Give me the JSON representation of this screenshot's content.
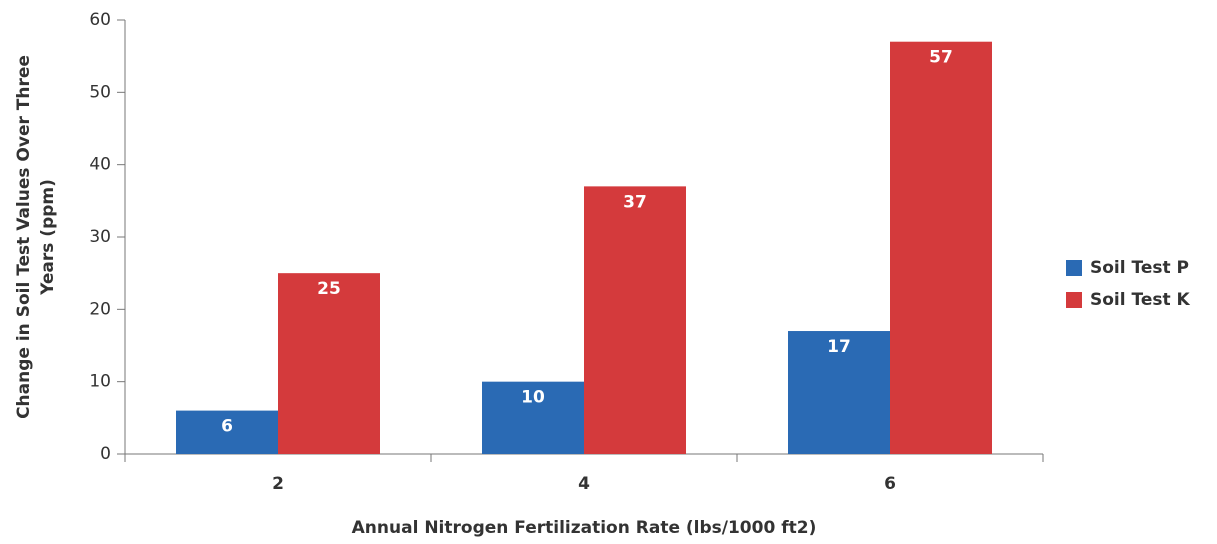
{
  "chart_data": {
    "type": "bar",
    "xlabel": "Annual Nitrogen Fertilization Rate (lbs/1000 ft2)",
    "ylabel": [
      "Change in Soil Test Values Over Three",
      "Years (ppm)"
    ],
    "categories": [
      "2",
      "4",
      "6"
    ],
    "series": [
      {
        "name": "Soil Test P",
        "color": "#2a6ab4",
        "values": [
          6,
          10,
          17
        ]
      },
      {
        "name": "Soil Test K",
        "color": "#d43a3c",
        "values": [
          25,
          37,
          57
        ]
      }
    ],
    "ylim": [
      0,
      60
    ],
    "yticks": [
      0,
      10,
      20,
      30,
      40,
      50,
      60
    ],
    "grid": false,
    "data_labels": true,
    "legend": "right"
  }
}
